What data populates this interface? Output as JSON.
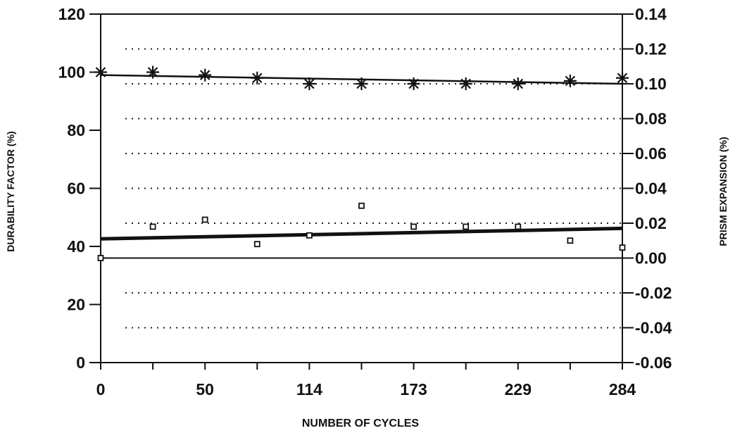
{
  "chart_data": {
    "type": "scatter",
    "title": "",
    "xlabel": "NUMBER OF CYCLES",
    "ylabel": "DURABILITY FACTOR (%)",
    "y2label": "PRISM EXPANSION (%)",
    "x_tick_labels": [
      "0",
      "50",
      "114",
      "173",
      "229",
      "284"
    ],
    "x_positions": [
      0,
      1,
      2,
      3,
      4,
      5,
      6,
      7,
      8,
      9,
      10
    ],
    "ylim": [
      0,
      120
    ],
    "y_ticks": [
      0,
      20,
      40,
      60,
      80,
      100,
      120
    ],
    "y2lim": [
      -0.06,
      0.14
    ],
    "y2_ticks": [
      "0.14",
      "0.12",
      "0.10",
      "0.08",
      "0.06",
      "0.04",
      "0.02",
      "0.00",
      "-0.02",
      "-0.04",
      "-0.06"
    ],
    "grid": "dotted horizontal at right-axis ticks",
    "series": [
      {
        "marker": "asterisk",
        "axis": "left",
        "values": [
          100,
          100,
          99,
          98,
          96,
          96,
          96,
          96,
          96,
          97,
          98
        ],
        "trend": [
          99,
          96
        ]
      },
      {
        "marker": "square",
        "axis": "right",
        "values": [
          0.0,
          0.018,
          0.022,
          0.008,
          0.013,
          0.03,
          0.018,
          0.018,
          0.018,
          0.01,
          0.006
        ],
        "trend": [
          0.011,
          0.017
        ]
      }
    ]
  }
}
